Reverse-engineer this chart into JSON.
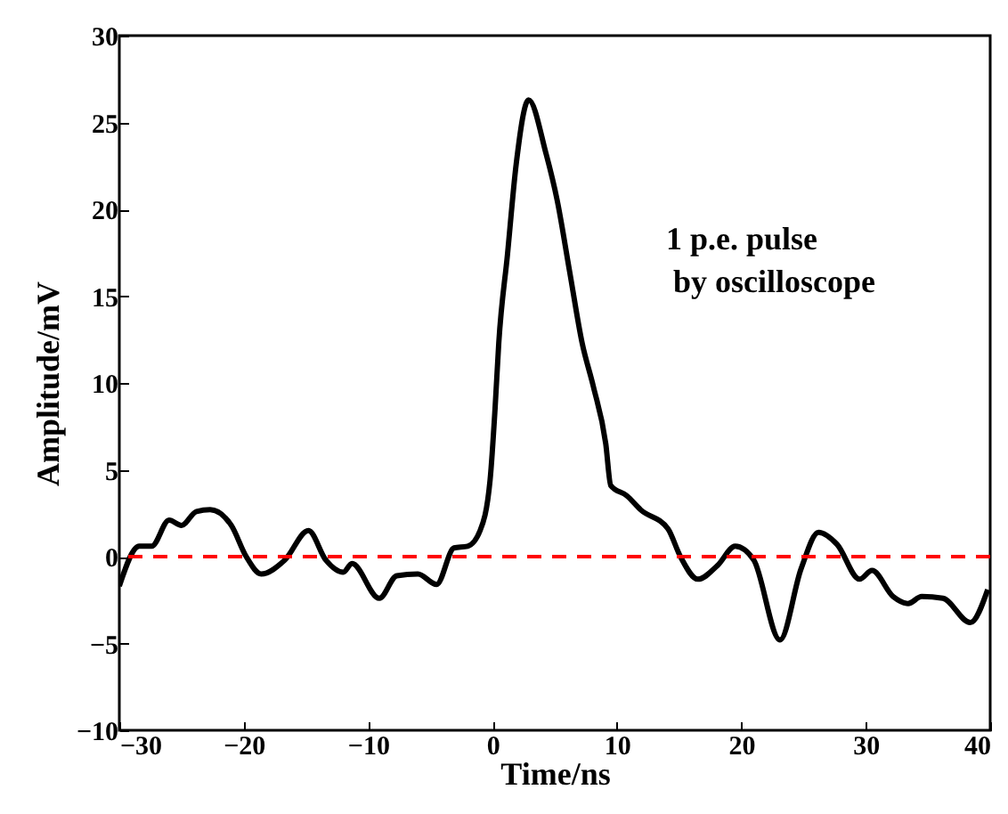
{
  "chart_data": {
    "type": "line",
    "xlabel": "Time/ns",
    "ylabel": "Amplitude/mV",
    "annotations": [
      "1 p.e. pulse",
      "by oscilloscope"
    ],
    "x": [
      -30,
      -28.4,
      -27.4,
      -26,
      -25,
      -23.8,
      -22.7,
      -21,
      -19.8,
      -18.6,
      -16.7,
      -14.8,
      -13.4,
      -12,
      -11.3,
      -9.1,
      -7.7,
      -6,
      -4.5,
      -3.1,
      -2,
      -1,
      -0.2,
      0.2,
      0.5,
      1.2,
      1.9,
      2.9,
      4.3,
      5.2,
      6.2,
      7.2,
      8.1,
      9.1,
      9.5,
      10.8,
      11.9,
      14.1,
      15.1,
      16.5,
      18.1,
      19.5,
      21,
      23.1,
      24.8,
      26.2,
      27.7,
      29.5,
      30.5,
      32.2,
      33.4,
      34.5,
      36.2,
      38.4,
      39.8
    ],
    "series": [
      {
        "color": "#000000",
        "values": [
          -1.7,
          0.6,
          0.6,
          2.1,
          1.8,
          2.6,
          2.7,
          1.8,
          0,
          -1,
          -0.2,
          1.5,
          -0.2,
          -0.9,
          -0.4,
          -2.4,
          -1.1,
          -1,
          -1.6,
          0.5,
          0.6,
          1.5,
          4.4,
          8.5,
          12.3,
          17.4,
          22.6,
          26.3,
          23.2,
          20.5,
          16.4,
          12.3,
          9.8,
          6.5,
          4.1,
          3.5,
          2.7,
          1.6,
          0,
          -1.3,
          -0.5,
          0.6,
          -0.2,
          -4.8,
          -0.7,
          1.4,
          0.7,
          -1.3,
          -0.8,
          -2.3,
          -2.7,
          -2.3,
          -2.4,
          -3.8,
          -1.9
        ]
      }
    ],
    "xlim": [
      -30,
      40
    ],
    "xticks": [
      -30,
      -20,
      -10,
      0,
      10,
      20,
      30,
      40
    ],
    "ylim": [
      -10,
      30
    ],
    "yticks": [
      -10,
      -5,
      0,
      5,
      10,
      15,
      20,
      25,
      30
    ],
    "ref_lines": [
      {
        "axis": "y",
        "value": 0,
        "color": "#ff0000",
        "line_style": "dashed"
      }
    ],
    "grid": false,
    "marker": "none",
    "line_style": "solid"
  }
}
